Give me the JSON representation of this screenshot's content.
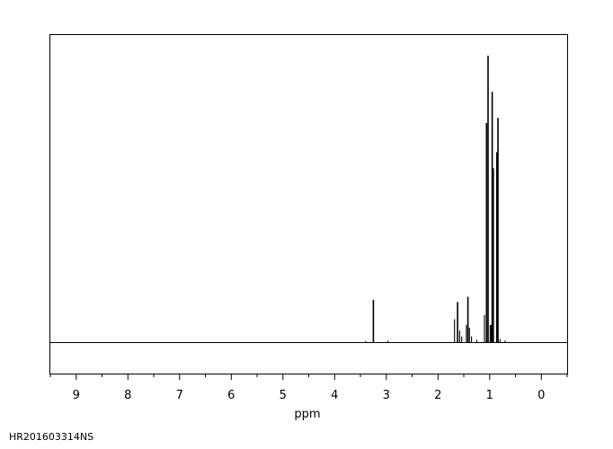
{
  "chart_data": {
    "type": "line",
    "title": "",
    "xlabel": "ppm",
    "ylabel": "",
    "xlim": [
      9.5,
      -0.5
    ],
    "x_reversed": true,
    "grid": false,
    "legend": "none",
    "xticks_major": [
      "9",
      "8",
      "7",
      "6",
      "5",
      "4",
      "3",
      "2",
      "1",
      "0"
    ],
    "series": [
      {
        "values_note": "",
        "peaks": [
          {
            "ppm": 3.4,
            "height": 0.004
          },
          {
            "ppm": 3.25,
            "height": 0.148
          },
          {
            "ppm": 2.97,
            "height": 0.005
          },
          {
            "ppm": 1.68,
            "height": 0.08
          },
          {
            "ppm": 1.62,
            "height": 0.14
          },
          {
            "ppm": 1.58,
            "height": 0.04
          },
          {
            "ppm": 1.54,
            "height": 0.02
          },
          {
            "ppm": 1.45,
            "height": 0.06
          },
          {
            "ppm": 1.42,
            "height": 0.158
          },
          {
            "ppm": 1.39,
            "height": 0.05
          },
          {
            "ppm": 1.35,
            "height": 0.02
          },
          {
            "ppm": 1.25,
            "height": 0.008
          },
          {
            "ppm": 1.1,
            "height": 0.095
          },
          {
            "ppm": 1.06,
            "height": 0.765
          },
          {
            "ppm": 1.03,
            "height": 1.0
          },
          {
            "ppm": 0.99,
            "height": 0.06
          },
          {
            "ppm": 0.97,
            "height": 0.06
          },
          {
            "ppm": 0.95,
            "height": 0.874
          },
          {
            "ppm": 0.93,
            "height": 0.607
          },
          {
            "ppm": 0.86,
            "height": 0.663
          },
          {
            "ppm": 0.84,
            "height": 0.783
          },
          {
            "ppm": 0.8,
            "height": 0.01
          },
          {
            "ppm": 0.7,
            "height": 0.006
          }
        ]
      }
    ]
  },
  "footer": {
    "sample_id": "HR201603314NS"
  }
}
